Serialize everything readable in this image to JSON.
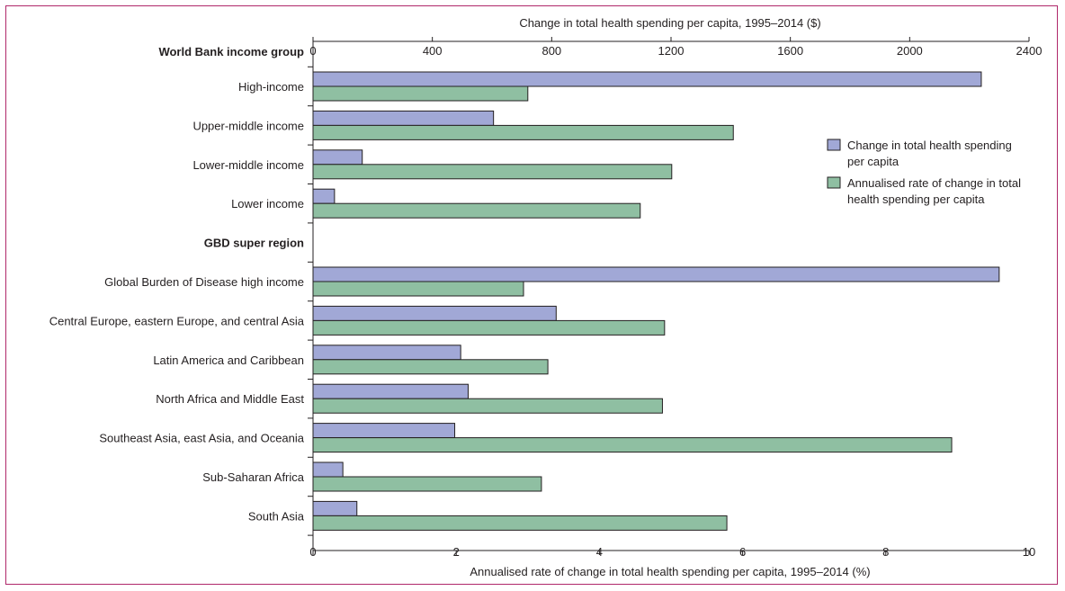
{
  "colors": {
    "frame": "#b0286a",
    "spending_bar": "#a1a8d6",
    "rate_bar": "#8fbfa2",
    "stroke": "#231f20"
  },
  "chart_data": {
    "type": "bar",
    "orientation": "horizontal",
    "top_axis_label": "Change in total health spending per capita, 1995–2014 ($)",
    "bottom_axis_label": "Annualised rate of change in total health spending per capita, 1995–2014 (%)",
    "top_axis": {
      "range": [
        0,
        2400
      ],
      "ticks": [
        "0",
        "400",
        "800",
        "1200",
        "1600",
        "2000",
        "2400"
      ]
    },
    "bottom_axis": {
      "range": [
        0,
        10
      ],
      "ticks": [
        "0",
        "2",
        "4",
        "6",
        "8",
        "10"
      ]
    },
    "legend_position": "right",
    "groups": [
      {
        "header": "World Bank income group",
        "categories": [
          {
            "name": "High-income",
            "spending": 2240,
            "rate": 3.0
          },
          {
            "name": "Upper-middle income",
            "spending": 605,
            "rate": 5.87
          },
          {
            "name": "Lower-middle income",
            "spending": 165,
            "rate": 5.01
          },
          {
            "name": "Lower income",
            "spending": 72,
            "rate": 4.57
          }
        ]
      },
      {
        "header": "GBD super region",
        "categories": [
          {
            "name": "Global Burden of Disease high income",
            "spending": 2300,
            "rate": 2.94
          },
          {
            "name": "Central Europe, eastern Europe, and central Asia",
            "spending": 815,
            "rate": 4.91
          },
          {
            "name": "Latin America and Caribbean",
            "spending": 495,
            "rate": 3.28
          },
          {
            "name": "North Africa and Middle East",
            "spending": 520,
            "rate": 4.88
          },
          {
            "name": "Southeast Asia, east Asia, and Oceania",
            "spending": 475,
            "rate": 8.92
          },
          {
            "name": "Sub-Saharan Africa",
            "spending": 100,
            "rate": 3.19
          },
          {
            "name": "South Asia",
            "spending": 147,
            "rate": 5.78
          }
        ]
      }
    ],
    "series": [
      {
        "name": "Change in total health spending per capita",
        "axis": "top"
      },
      {
        "name": "Annualised rate of change in total health spending per capita",
        "axis": "bottom"
      }
    ],
    "legend": [
      {
        "lines": [
          "Change in total health spending",
          "per capita"
        ]
      },
      {
        "lines": [
          "Annualised rate of change in total",
          "health spending per capita"
        ]
      }
    ]
  }
}
